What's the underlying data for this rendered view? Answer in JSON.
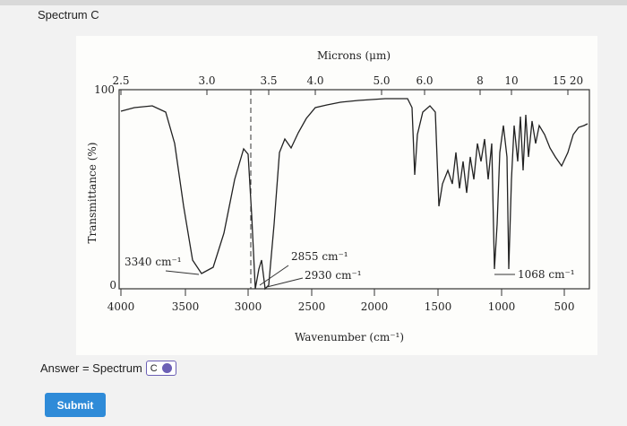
{
  "header": {
    "title": "Spectrum C"
  },
  "spectrum": {
    "top_axis_label": "Microns (μm)",
    "top_ticks": [
      "2.5",
      "3.0",
      "3.5",
      "4.0",
      "5.0",
      "6.0",
      "8",
      "10",
      "15 20"
    ],
    "y_axis_label": "Transmittance (%)",
    "y_ticks": [
      "100",
      "0"
    ],
    "bottom_ticks": [
      "4000",
      "3500",
      "3000",
      "2500",
      "2000",
      "1500",
      "1000",
      "500"
    ],
    "bottom_axis_label": "Wavenumber (cm⁻¹)",
    "annotations": [
      "3340 cm⁻¹",
      "2855 cm⁻¹",
      "2930 cm⁻¹",
      "1068 cm⁻¹"
    ]
  },
  "answer": {
    "label": "Answer = Spectrum",
    "selected": "C"
  },
  "submit": "Submit"
}
